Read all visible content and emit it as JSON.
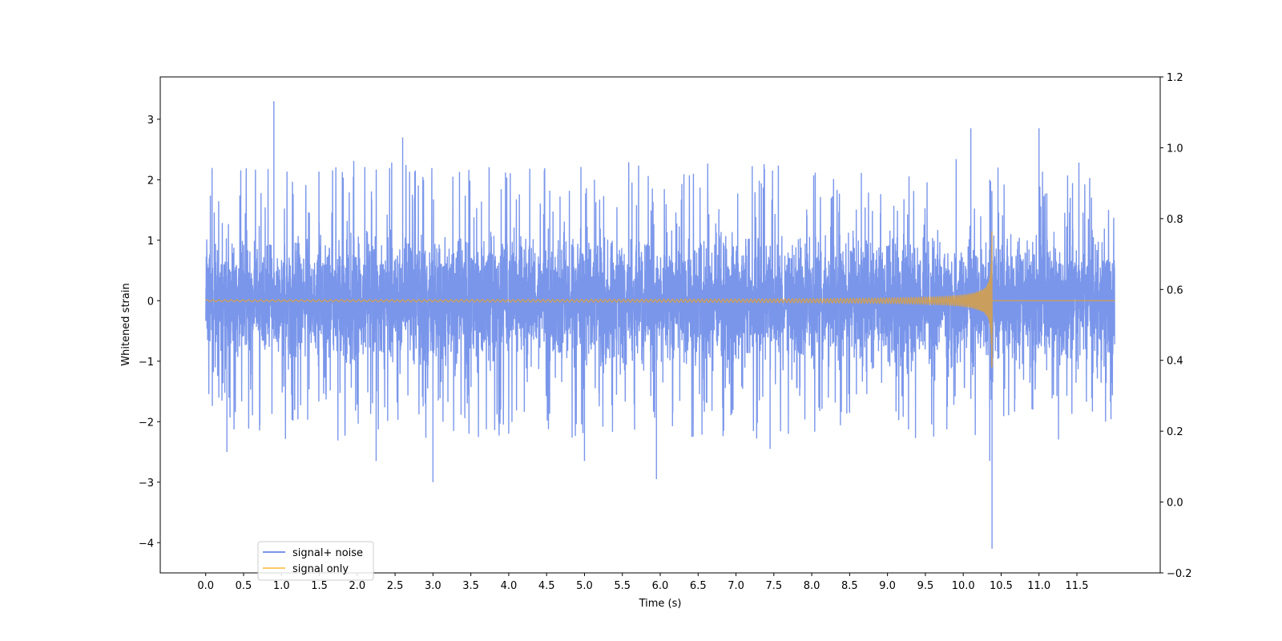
{
  "chart_data": {
    "type": "line",
    "xlabel": "Time (s)",
    "ylabel": "Whitened strain",
    "xlim": [
      -0.6,
      12.6
    ],
    "ylim": [
      -4.5,
      3.7
    ],
    "y2lim": [
      -0.2,
      1.2
    ],
    "x_ticks": [
      0.0,
      0.5,
      1.0,
      1.5,
      2.0,
      2.5,
      3.0,
      3.5,
      4.0,
      4.5,
      5.0,
      5.5,
      6.0,
      6.5,
      7.0,
      7.5,
      8.0,
      8.5,
      9.0,
      9.5,
      10.0,
      10.5,
      11.0,
      11.5
    ],
    "x_tick_labels": [
      "0.0",
      "0.5",
      "1.0",
      "1.5",
      "2.0",
      "2.5",
      "3.0",
      "3.5",
      "4.0",
      "4.5",
      "5.0",
      "5.5",
      "6.0",
      "6.5",
      "7.0",
      "7.5",
      "8.0",
      "8.5",
      "9.0",
      "9.5",
      "10.0",
      "10.5",
      "11.0",
      "11.5"
    ],
    "y_ticks": [
      -4,
      -3,
      -2,
      -1,
      0,
      1,
      2,
      3
    ],
    "y_tick_labels": [
      "−4",
      "−3",
      "−2",
      "−1",
      "0",
      "1",
      "2",
      "3"
    ],
    "y2_ticks": [
      -0.2,
      0.0,
      0.2,
      0.4,
      0.6,
      0.8,
      1.0,
      1.2
    ],
    "y2_tick_labels": [
      "−0.2",
      "0.0",
      "0.2",
      "0.4",
      "0.6",
      "0.8",
      "1.0",
      "1.2"
    ],
    "grid": false,
    "legend_position": "lower-left",
    "series": [
      {
        "name": "signal+ noise",
        "color": "#4169e1",
        "alpha": 0.7,
        "x_range": [
          0.0,
          12.0
        ],
        "typical_envelope": [
          -1.3,
          1.4
        ],
        "notable_peaks": [
          {
            "x": 0.9,
            "y": 3.3
          },
          {
            "x": 2.6,
            "y": 2.7
          },
          {
            "x": 10.1,
            "y": 2.85
          },
          {
            "x": 10.35,
            "y": 2.0
          },
          {
            "x": 11.0,
            "y": 2.85
          }
        ],
        "notable_troughs": [
          {
            "x": 0.28,
            "y": -2.5
          },
          {
            "x": 2.25,
            "y": -2.65
          },
          {
            "x": 3.0,
            "y": -3.0
          },
          {
            "x": 5.0,
            "y": -2.65
          },
          {
            "x": 5.95,
            "y": -2.95
          },
          {
            "x": 7.45,
            "y": -2.45
          },
          {
            "x": 10.35,
            "y": -2.65
          },
          {
            "x": 10.38,
            "y": -4.1
          }
        ]
      },
      {
        "name": "signal only",
        "color": "#ffa500",
        "alpha": 0.6,
        "x_range": [
          0.0,
          12.0
        ],
        "merger_time": 10.38,
        "peak_amplitude": 2.0,
        "envelope_samples": [
          {
            "x": 6.0,
            "y": 0.02
          },
          {
            "x": 8.0,
            "y": 0.06
          },
          {
            "x": 9.0,
            "y": 0.1
          },
          {
            "x": 9.5,
            "y": 0.15
          },
          {
            "x": 10.0,
            "y": 0.3
          },
          {
            "x": 10.2,
            "y": 0.55
          },
          {
            "x": 10.3,
            "y": 1.0
          },
          {
            "x": 10.36,
            "y": 2.0
          }
        ]
      }
    ]
  }
}
